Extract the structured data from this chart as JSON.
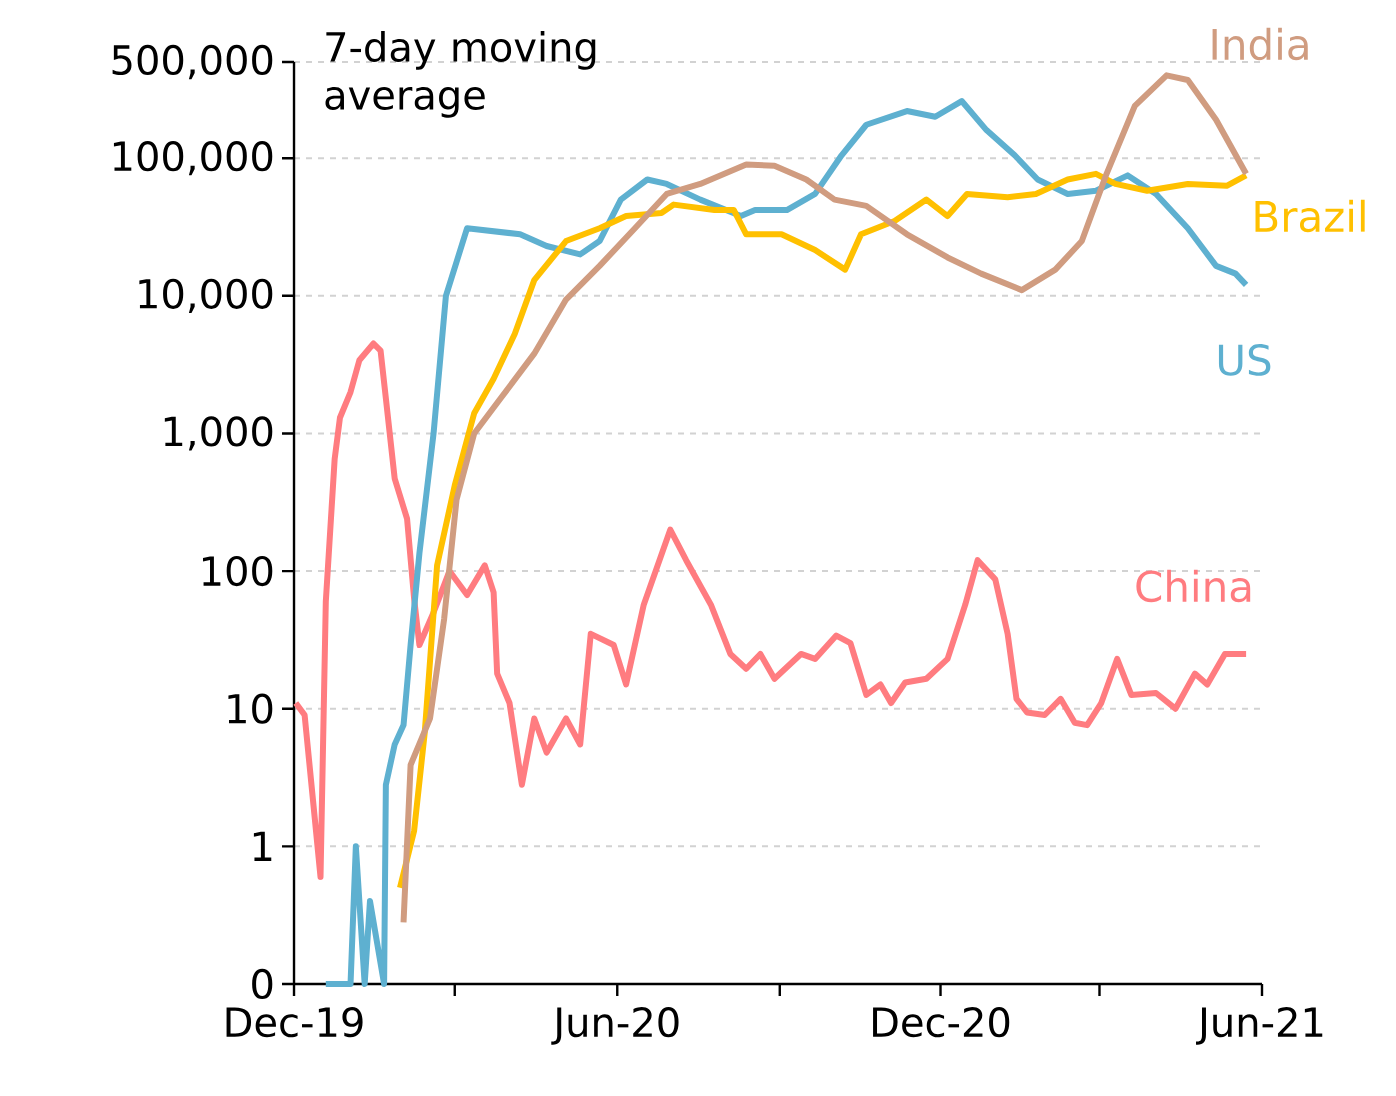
{
  "chart_data": {
    "type": "line",
    "log": "y",
    "grid": "y",
    "annotations": [
      "7-day moving average"
    ],
    "xlim": [
      "2019-12-01",
      "2021-06-01"
    ],
    "xticks": [
      {
        "value": "2019-12-01",
        "label": "Dec-19"
      },
      {
        "value": "2020-03-01",
        "label": null
      },
      {
        "value": "2020-06-01",
        "label": "Jun-20"
      },
      {
        "value": "2020-09-01",
        "label": null
      },
      {
        "value": "2020-12-01",
        "label": "Dec-20"
      },
      {
        "value": "2021-03-01",
        "label": null
      },
      {
        "value": "2021-06-01",
        "label": "Jun-21"
      }
    ],
    "ylim": [
      0.1,
      500000
    ],
    "yticks": [
      {
        "value": 0.1,
        "label": "0"
      },
      1,
      10,
      100,
      {
        "value": 1000,
        "label": "1,000"
      },
      {
        "value": 10000,
        "label": "10,000"
      },
      {
        "value": 100000,
        "label": "100,000"
      },
      {
        "value": 500000,
        "label": "500,000"
      }
    ],
    "series": [
      {
        "name": "China",
        "color": "#ff7c80",
        "x": [
          "2019-12-02",
          "2019-12-07",
          "2019-12-12",
          "2019-12-16",
          "2019-12-19",
          "2019-12-24",
          "2019-12-27",
          "2020-01-02",
          "2020-01-07",
          "2020-01-15",
          "2020-01-19",
          "2020-01-22",
          "2020-01-27",
          "2020-02-03",
          "2020-02-07",
          "2020-02-10",
          "2020-02-18",
          "2020-02-27",
          "2020-03-08",
          "2020-03-18",
          "2020-03-23",
          "2020-03-25",
          "2020-04-01",
          "2020-04-08",
          "2020-04-15",
          "2020-04-22",
          "2020-05-03",
          "2020-05-11",
          "2020-05-17",
          "2020-05-30",
          "2020-06-06",
          "2020-06-16",
          "2020-07-01",
          "2020-07-10",
          "2020-07-24",
          "2020-08-04",
          "2020-08-13",
          "2020-08-21",
          "2020-08-29",
          "2020-09-13",
          "2020-09-21",
          "2020-10-03",
          "2020-10-11",
          "2020-10-20",
          "2020-10-28",
          "2020-11-03",
          "2020-11-11",
          "2020-11-23",
          "2020-12-05",
          "2020-12-15",
          "2020-12-22",
          "2021-01-01",
          "2021-01-08",
          "2021-01-13",
          "2021-01-19",
          "2021-01-29",
          "2021-02-07",
          "2021-02-15",
          "2021-02-22",
          "2021-03-02",
          "2021-03-11",
          "2021-03-19",
          "2021-04-02",
          "2021-04-13",
          "2021-04-24",
          "2021-05-01",
          "2021-05-11",
          "2021-05-23"
        ],
        "values": [
          11,
          9,
          2,
          0.6,
          60,
          650,
          1300,
          2000,
          3400,
          4500,
          4000,
          1800,
          470,
          240,
          63,
          29,
          50,
          100,
          67,
          110,
          70,
          18,
          11,
          2.8,
          8.5,
          4.8,
          8.5,
          5.5,
          35,
          29,
          15,
          57,
          200,
          120,
          57,
          25,
          19.5,
          25,
          16.5,
          25,
          23,
          34,
          30,
          12.6,
          15,
          11,
          15.5,
          16.5,
          23,
          57,
          120,
          87,
          35,
          11.8,
          9.4,
          9,
          11.8,
          7.9,
          7.6,
          11,
          23,
          12.6,
          13,
          10,
          18,
          15,
          25,
          25
        ]
      },
      {
        "name": "US",
        "color": "#5eb0d0",
        "x": [
          "2019-12-19",
          "2020-01-02",
          "2020-01-05",
          "2020-01-10",
          "2020-01-13",
          "2020-01-21",
          "2020-01-22",
          "2020-01-27",
          "2020-02-01",
          "2020-02-05",
          "2020-02-10",
          "2020-02-18",
          "2020-02-25",
          "2020-03-08",
          "2020-04-07",
          "2020-04-22",
          "2020-05-11",
          "2020-05-22",
          "2020-06-03",
          "2020-06-18",
          "2020-06-29",
          "2020-07-18",
          "2020-08-10",
          "2020-08-18",
          "2020-09-05",
          "2020-09-21",
          "2020-10-06",
          "2020-10-20",
          "2020-11-12",
          "2020-11-28",
          "2020-12-13",
          "2020-12-27",
          "2021-01-12",
          "2021-01-25",
          "2021-02-11",
          "2021-02-27",
          "2021-03-17",
          "2021-04-02",
          "2021-04-20",
          "2021-05-06",
          "2021-05-17",
          "2021-05-23"
        ],
        "values": [
          0.1,
          0.1,
          1,
          0.1,
          0.4,
          0.1,
          2.8,
          5.5,
          7.6,
          29,
          135,
          1000,
          10000,
          31000,
          28000,
          23000,
          20000,
          25000,
          50000,
          70000,
          65000,
          50000,
          38000,
          42000,
          42000,
          55000,
          105000,
          175000,
          220000,
          200000,
          260000,
          160000,
          105000,
          70000,
          55000,
          58000,
          75000,
          55000,
          31000,
          16500,
          14500,
          12000
        ]
      },
      {
        "name": "Brazil",
        "color": "#ffc000",
        "x": [
          "2020-01-30",
          "2020-02-07",
          "2020-02-13",
          "2020-02-20",
          "2020-03-01",
          "2020-03-12",
          "2020-03-23",
          "2020-04-04",
          "2020-04-15",
          "2020-05-03",
          "2020-05-22",
          "2020-06-06",
          "2020-06-26",
          "2020-07-03",
          "2020-07-26",
          "2020-08-06",
          "2020-08-13",
          "2020-09-02",
          "2020-09-21",
          "2020-10-08",
          "2020-10-17",
          "2020-11-05",
          "2020-11-23",
          "2020-12-05",
          "2020-12-16",
          "2021-01-08",
          "2021-01-24",
          "2021-02-11",
          "2021-02-27",
          "2021-03-10",
          "2021-03-28",
          "2021-04-20",
          "2021-05-12",
          "2021-05-23"
        ],
        "values": [
          0.5,
          1.3,
          6.7,
          110,
          420,
          1400,
          2500,
          5300,
          13000,
          25000,
          31000,
          38000,
          40000,
          46000,
          42000,
          42000,
          28000,
          28000,
          21500,
          15500,
          28000,
          35000,
          50000,
          38000,
          55000,
          52000,
          55000,
          70000,
          77000,
          65000,
          58000,
          65000,
          63000,
          75000
        ]
      },
      {
        "name": "India",
        "color": "#d09c80",
        "x": [
          "2020-02-01",
          "2020-02-05",
          "2020-02-16",
          "2020-02-24",
          "2020-03-02",
          "2020-03-12",
          "2020-03-27",
          "2020-04-15",
          "2020-05-03",
          "2020-05-22",
          "2020-06-11",
          "2020-06-29",
          "2020-07-18",
          "2020-08-13",
          "2020-08-29",
          "2020-09-16",
          "2020-10-02",
          "2020-10-20",
          "2020-11-12",
          "2020-12-05",
          "2020-12-24",
          "2021-01-16",
          "2021-02-04",
          "2021-02-19",
          "2021-03-05",
          "2021-03-21",
          "2021-04-08",
          "2021-04-20",
          "2021-05-06",
          "2021-05-23"
        ],
        "values": [
          0.28,
          3.9,
          8.5,
          45,
          330,
          1000,
          1800,
          3800,
          9400,
          16500,
          31000,
          55000,
          65000,
          90000,
          88000,
          70000,
          50000,
          45000,
          28000,
          19000,
          14500,
          11000,
          15500,
          25000,
          77000,
          240000,
          400000,
          370000,
          190000,
          77000
        ]
      }
    ]
  }
}
